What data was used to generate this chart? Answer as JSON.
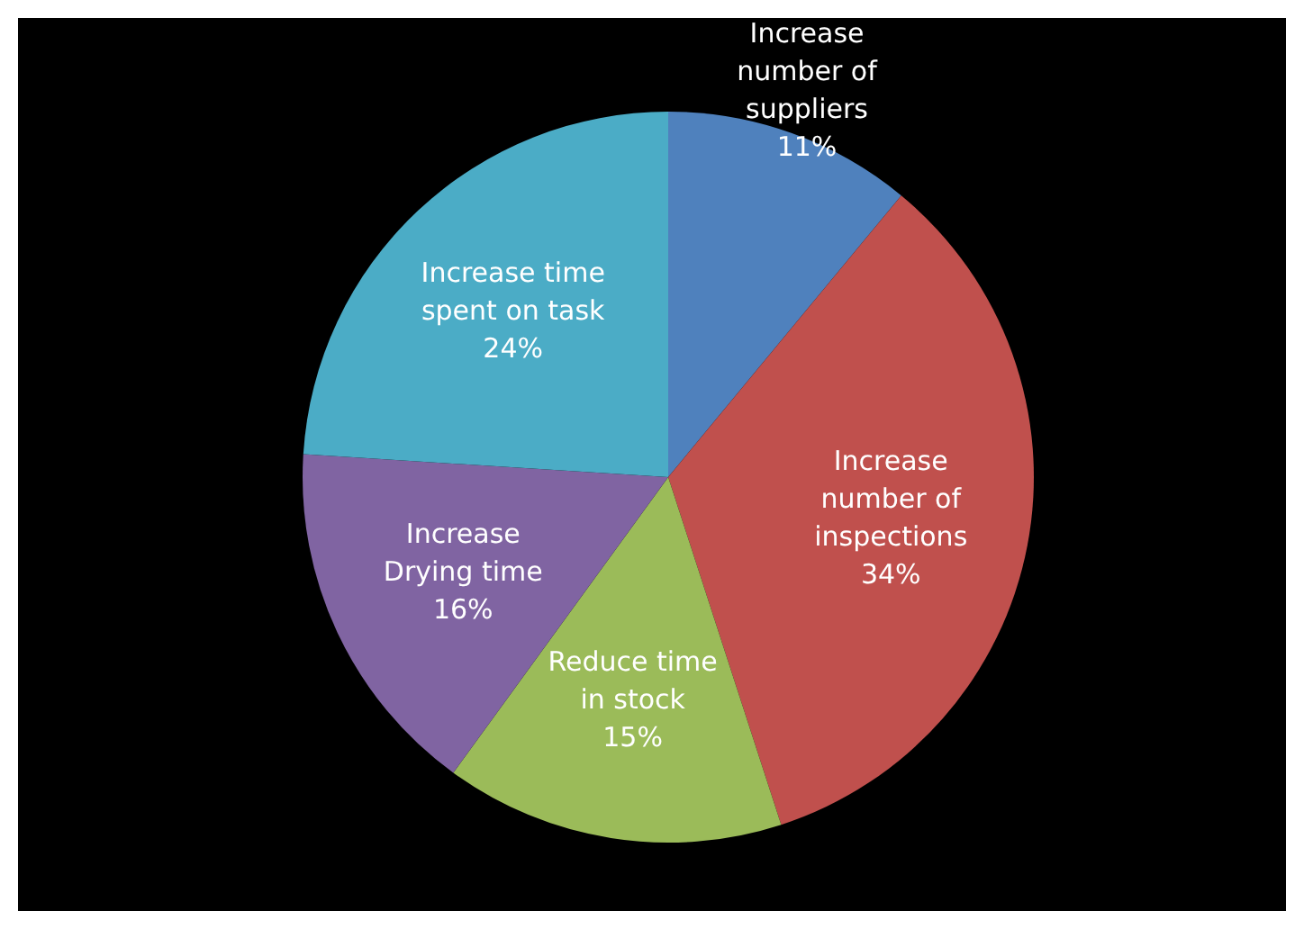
{
  "chart_data": {
    "type": "pie",
    "categories": [
      "Increase number of suppliers",
      "Increase number of inspections",
      "Reduce time in stock",
      "Increase Drying time",
      "Increase time spent on task"
    ],
    "values": [
      11,
      34,
      15,
      16,
      24
    ],
    "colors": [
      "#4f81bd",
      "#c0504d",
      "#9bbb59",
      "#8064a2",
      "#4bacc6"
    ],
    "value_labels": [
      "11%",
      "34%",
      "15%",
      "16%",
      "24%"
    ]
  }
}
